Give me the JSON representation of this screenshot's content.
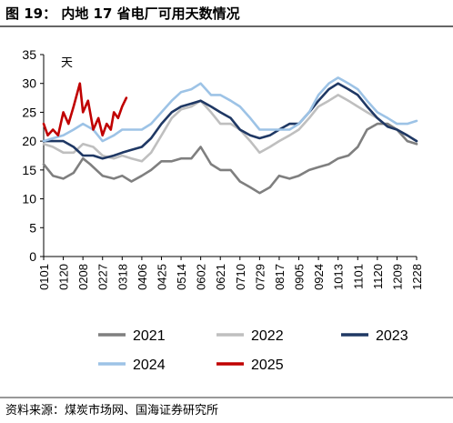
{
  "figure": {
    "title": "图 19：   内地 17 省电厂可用天数情况",
    "source": "资料来源：煤炭市场网、国海证券研究所"
  },
  "chart_data": {
    "type": "line",
    "ylabel": "天",
    "ylim": [
      0,
      35
    ],
    "yticks": [
      "0",
      "5",
      "10",
      "15",
      "20",
      "25",
      "30",
      "35"
    ],
    "xticks": [
      "0101",
      "0120",
      "0208",
      "0227",
      "0318",
      "0406",
      "0425",
      "0514",
      "0602",
      "0621",
      "0710",
      "0729",
      "0817",
      "0905",
      "0924",
      "1013",
      "1101",
      "1120",
      "1209",
      "1228"
    ],
    "grid": false,
    "legend_position": "bottom",
    "series": [
      {
        "name": "2021",
        "color": "#7f7f7f",
        "x": [
          "0101",
          "0110",
          "0120",
          "0130",
          "0208",
          "0215",
          "0227",
          "0310",
          "0318",
          "0327",
          "0406",
          "0415",
          "0425",
          "0505",
          "0514",
          "0524",
          "0602",
          "0612",
          "0621",
          "0701",
          "0710",
          "0720",
          "0729",
          "0808",
          "0817",
          "0827",
          "0905",
          "0915",
          "0924",
          "1004",
          "1013",
          "1023",
          "1101",
          "1110",
          "1120",
          "1130",
          "1209",
          "1219",
          "1228"
        ],
        "y": [
          16,
          14,
          13.5,
          14.5,
          17,
          16,
          14,
          13.5,
          14,
          13,
          14,
          15,
          16.5,
          16.5,
          17,
          17,
          19,
          16,
          15,
          15,
          13,
          12,
          11,
          12,
          14,
          13.5,
          14,
          15,
          15.5,
          16,
          17,
          17.5,
          19,
          22,
          23,
          23,
          22,
          20,
          19.5
        ]
      },
      {
        "name": "2022",
        "color": "#bfbfbf",
        "x": [
          "0101",
          "0110",
          "0120",
          "0130",
          "0208",
          "0218",
          "0227",
          "0310",
          "0318",
          "0327",
          "0406",
          "0415",
          "0425",
          "0505",
          "0514",
          "0524",
          "0602",
          "0612",
          "0621",
          "0701",
          "0710",
          "0720",
          "0729",
          "0808",
          "0817",
          "0827",
          "0905",
          "0915",
          "0924",
          "1004",
          "1013",
          "1023",
          "1101",
          "1110",
          "1120",
          "1130",
          "1209",
          "1219",
          "1228"
        ],
        "y": [
          19.5,
          19,
          18,
          18,
          19.5,
          19,
          17.5,
          17,
          17.5,
          17,
          16.5,
          18,
          21,
          24,
          25.5,
          26,
          27,
          25,
          23,
          23,
          22,
          20,
          18,
          19,
          20,
          21,
          22,
          24,
          26,
          27,
          28,
          27,
          26,
          25,
          24,
          22.5,
          22,
          21,
          20
        ]
      },
      {
        "name": "2023",
        "color": "#1f3864",
        "x": [
          "0101",
          "0110",
          "0120",
          "0130",
          "0208",
          "0218",
          "0227",
          "0310",
          "0318",
          "0327",
          "0406",
          "0415",
          "0425",
          "0505",
          "0514",
          "0524",
          "0602",
          "0612",
          "0621",
          "0701",
          "0710",
          "0720",
          "0729",
          "0808",
          "0817",
          "0827",
          "0905",
          "0915",
          "0924",
          "1004",
          "1013",
          "1023",
          "1101",
          "1110",
          "1120",
          "1130",
          "1209",
          "1219",
          "1228"
        ],
        "y": [
          20,
          20,
          20,
          19,
          17.5,
          17.5,
          17,
          17.5,
          18,
          18.5,
          19,
          20.5,
          23,
          25,
          26,
          26.5,
          27,
          26,
          25,
          24,
          22,
          21,
          20.5,
          21,
          22,
          23,
          23,
          25,
          27,
          29,
          30,
          29,
          28,
          26,
          24,
          22.5,
          22,
          21,
          20
        ]
      },
      {
        "name": "2024",
        "color": "#9dc3e6",
        "x": [
          "0101",
          "0110",
          "0120",
          "0130",
          "0208",
          "0218",
          "0227",
          "0310",
          "0318",
          "0327",
          "0406",
          "0415",
          "0425",
          "0505",
          "0514",
          "0524",
          "0602",
          "0612",
          "0621",
          "0701",
          "0710",
          "0720",
          "0729",
          "0808",
          "0817",
          "0827",
          "0905",
          "0915",
          "0924",
          "1004",
          "1013",
          "1023",
          "1101",
          "1110",
          "1120",
          "1130",
          "1209",
          "1219",
          "1228"
        ],
        "y": [
          20,
          20.5,
          21,
          22,
          23,
          22,
          20,
          21,
          22,
          22,
          22,
          23,
          25,
          27,
          28.5,
          29,
          30,
          28,
          28,
          27,
          26,
          24,
          22,
          22,
          22,
          22,
          23,
          25,
          28,
          30,
          31,
          30,
          29,
          27,
          25,
          24,
          23,
          23,
          23.5
        ]
      },
      {
        "name": "2025",
        "color": "#c00000",
        "x": [
          "0101",
          "0105",
          "0110",
          "0115",
          "0120",
          "0125",
          "0130",
          "0205",
          "0208",
          "0213",
          "0218",
          "0223",
          "0227",
          "0303",
          "0307",
          "0310",
          "0314",
          "0318",
          "0322"
        ],
        "y": [
          23,
          21,
          22,
          21,
          25,
          23,
          26,
          30,
          25,
          27,
          22,
          24,
          21,
          23,
          22,
          25,
          24,
          26,
          27.5
        ]
      }
    ]
  }
}
